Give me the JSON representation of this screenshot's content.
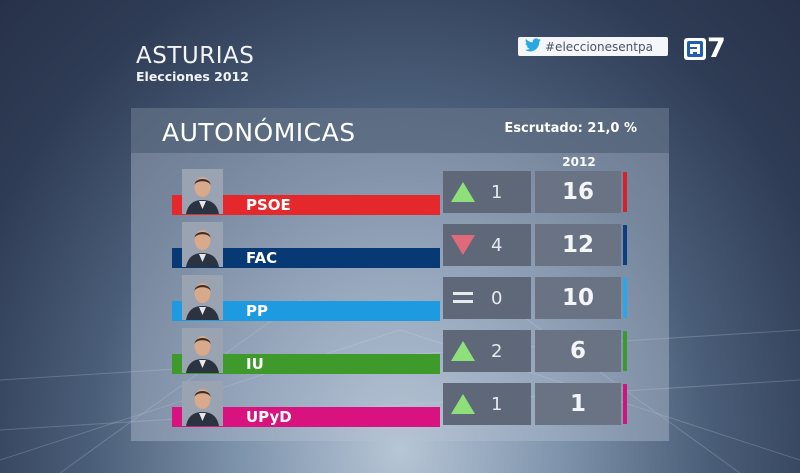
{
  "header": {
    "region": "ASTURIAS",
    "subtitle": "Elecciones 2012",
    "hashtag": "#eleccionesentpa",
    "channel_number": "7"
  },
  "panel": {
    "title": "AUTONÓMICAS",
    "scrutiny": "Escrutado: 21,0 %",
    "year": "2012"
  },
  "parties": [
    {
      "name": "PSOE",
      "change_dir": "up",
      "change": "1",
      "seats": "16",
      "color": "#e5282b",
      "accent": "#d81f2a"
    },
    {
      "name": "FAC",
      "change_dir": "down",
      "change": "4",
      "seats": "12",
      "color": "#073a75",
      "accent": "#0c3f82"
    },
    {
      "name": "PP",
      "change_dir": "same",
      "change": "0",
      "seats": "10",
      "color": "#1e9be0",
      "accent": "#2aa6ea"
    },
    {
      "name": "IU",
      "change_dir": "up",
      "change": "2",
      "seats": "6",
      "color": "#3f9a2c",
      "accent": "#3b9a2c"
    },
    {
      "name": "UPyD",
      "change_dir": "up",
      "change": "1",
      "seats": "1",
      "color": "#d8127f",
      "accent": "#d0147e"
    }
  ],
  "colors": {
    "up": "#8fe07a",
    "down": "#e06a7a",
    "same": "#e6e9ee"
  }
}
